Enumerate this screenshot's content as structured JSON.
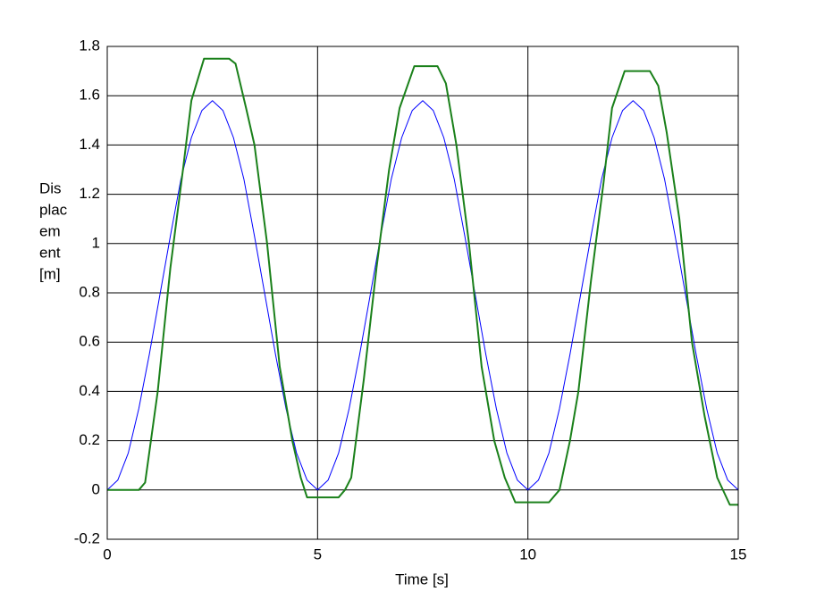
{
  "chart_data": {
    "type": "line",
    "xlabel": "Time [s]",
    "ylabel_lines": [
      "Dis",
      "plac",
      "em",
      "ent",
      "[m]"
    ],
    "xlim": [
      0,
      15
    ],
    "xticks": [
      0,
      5,
      10,
      15
    ],
    "ylim": [
      -0.2,
      1.8
    ],
    "yticks": [
      -0.2,
      0,
      0.2,
      0.4,
      0.6,
      0.8,
      1,
      1.2,
      1.4,
      1.6,
      1.8
    ],
    "grid": true,
    "series": [
      {
        "color": "#0000ff",
        "width": 1,
        "x": [
          0,
          0.25,
          0.5,
          0.75,
          1,
          1.25,
          1.5,
          1.75,
          2,
          2.25,
          2.5,
          2.75,
          3,
          3.25,
          3.5,
          3.75,
          4,
          4.25,
          4.5,
          4.75,
          5,
          5.25,
          5.5,
          5.75,
          6,
          6.25,
          6.5,
          6.75,
          7,
          7.25,
          7.5,
          7.75,
          8,
          8.25,
          8.5,
          8.75,
          9,
          9.25,
          9.5,
          9.75,
          10,
          10.25,
          10.5,
          10.75,
          11,
          11.25,
          11.5,
          11.75,
          12,
          12.25,
          12.5,
          12.75,
          13,
          13.25,
          13.5,
          13.75,
          14,
          14.25,
          14.5,
          14.75,
          15
        ],
        "values": [
          0,
          0.04,
          0.15,
          0.33,
          0.55,
          0.79,
          1.03,
          1.26,
          1.43,
          1.54,
          1.58,
          1.54,
          1.43,
          1.26,
          1.03,
          0.79,
          0.55,
          0.33,
          0.15,
          0.04,
          0,
          0.04,
          0.15,
          0.33,
          0.55,
          0.79,
          1.03,
          1.26,
          1.43,
          1.54,
          1.58,
          1.54,
          1.43,
          1.26,
          1.03,
          0.79,
          0.55,
          0.33,
          0.15,
          0.04,
          0,
          0.04,
          0.15,
          0.33,
          0.55,
          0.79,
          1.03,
          1.26,
          1.43,
          1.54,
          1.58,
          1.54,
          1.43,
          1.26,
          1.03,
          0.79,
          0.55,
          0.33,
          0.15,
          0.04,
          0
        ]
      },
      {
        "color": "#1a801a",
        "width": 2,
        "x": [
          0,
          0.75,
          0.9,
          1.2,
          1.5,
          1.8,
          2.0,
          2.3,
          2.9,
          3.05,
          3.3,
          3.5,
          3.8,
          4.1,
          4.4,
          4.6,
          4.75,
          5.5,
          5.65,
          5.8,
          6.1,
          6.4,
          6.7,
          6.95,
          7.3,
          7.85,
          8.05,
          8.3,
          8.6,
          8.9,
          9.2,
          9.45,
          9.7,
          10.5,
          10.75,
          11.0,
          11.2,
          11.5,
          11.8,
          12.0,
          12.3,
          12.9,
          13.1,
          13.3,
          13.6,
          13.9,
          14.2,
          14.5,
          14.8,
          15
        ],
        "values": [
          0,
          0,
          0.03,
          0.4,
          0.9,
          1.3,
          1.58,
          1.75,
          1.75,
          1.73,
          1.55,
          1.4,
          1.0,
          0.5,
          0.2,
          0.05,
          -0.03,
          -0.03,
          0,
          0.05,
          0.45,
          0.9,
          1.3,
          1.55,
          1.72,
          1.72,
          1.65,
          1.4,
          1.0,
          0.5,
          0.2,
          0.05,
          -0.05,
          -0.05,
          0,
          0.2,
          0.4,
          0.85,
          1.25,
          1.55,
          1.7,
          1.7,
          1.64,
          1.45,
          1.1,
          0.6,
          0.3,
          0.05,
          -0.06,
          -0.06
        ]
      }
    ]
  }
}
